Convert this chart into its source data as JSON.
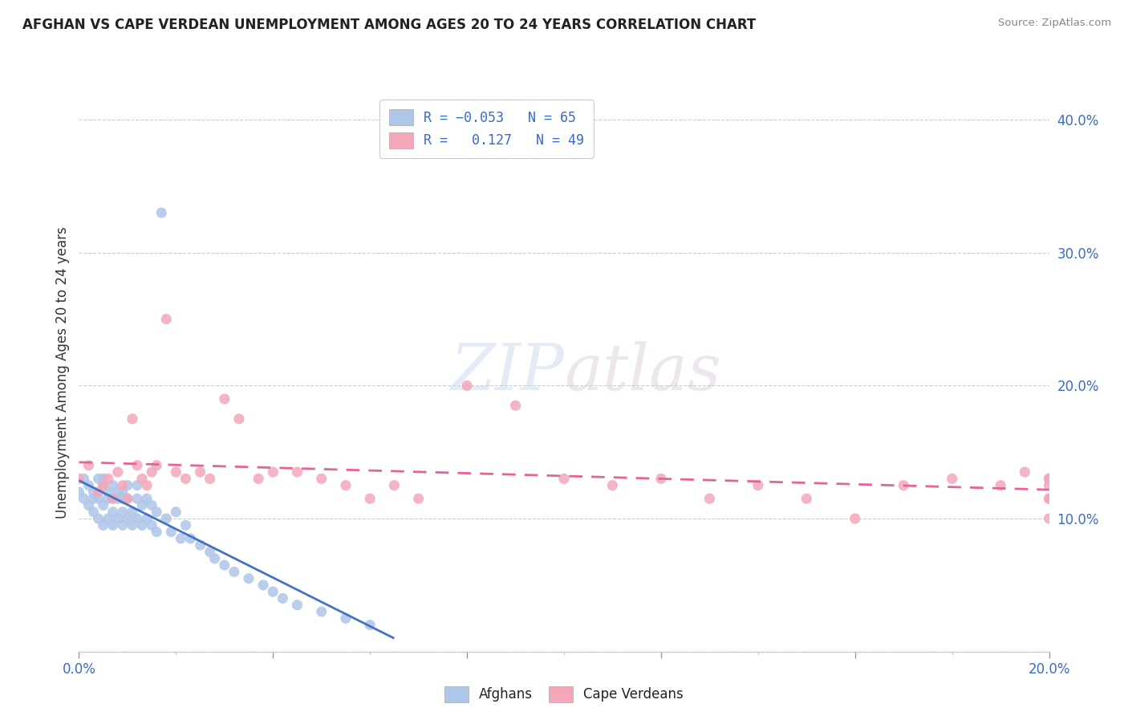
{
  "title": "AFGHAN VS CAPE VERDEAN UNEMPLOYMENT AMONG AGES 20 TO 24 YEARS CORRELATION CHART",
  "source": "Source: ZipAtlas.com",
  "ylabel": "Unemployment Among Ages 20 to 24 years",
  "xlim": [
    0.0,
    0.2
  ],
  "ylim": [
    0.0,
    0.42
  ],
  "afghan_R": -0.053,
  "afghan_N": 65,
  "capeverdean_R": 0.127,
  "capeverdean_N": 49,
  "afghan_color": "#aec6e8",
  "capeverdean_color": "#f4a7b9",
  "afghan_line_color": "#4472c4",
  "capeverdean_line_color": "#e8629a",
  "afghan_x": [
    0.0,
    0.001,
    0.001,
    0.002,
    0.002,
    0.003,
    0.003,
    0.003,
    0.004,
    0.004,
    0.004,
    0.005,
    0.005,
    0.005,
    0.005,
    0.006,
    0.006,
    0.006,
    0.007,
    0.007,
    0.007,
    0.007,
    0.008,
    0.008,
    0.008,
    0.009,
    0.009,
    0.009,
    0.009,
    0.01,
    0.01,
    0.01,
    0.011,
    0.011,
    0.012,
    0.012,
    0.012,
    0.013,
    0.013,
    0.014,
    0.014,
    0.015,
    0.015,
    0.016,
    0.016,
    0.017,
    0.018,
    0.019,
    0.02,
    0.021,
    0.022,
    0.023,
    0.025,
    0.027,
    0.028,
    0.03,
    0.032,
    0.035,
    0.038,
    0.04,
    0.042,
    0.045,
    0.05,
    0.055,
    0.06
  ],
  "afghan_y": [
    0.12,
    0.13,
    0.115,
    0.11,
    0.125,
    0.105,
    0.12,
    0.115,
    0.1,
    0.115,
    0.13,
    0.095,
    0.11,
    0.125,
    0.13,
    0.1,
    0.115,
    0.12,
    0.095,
    0.105,
    0.115,
    0.125,
    0.1,
    0.115,
    0.12,
    0.095,
    0.105,
    0.115,
    0.12,
    0.1,
    0.115,
    0.125,
    0.095,
    0.105,
    0.1,
    0.115,
    0.125,
    0.095,
    0.11,
    0.1,
    0.115,
    0.095,
    0.11,
    0.09,
    0.105,
    0.33,
    0.1,
    0.09,
    0.105,
    0.085,
    0.095,
    0.085,
    0.08,
    0.075,
    0.07,
    0.065,
    0.06,
    0.055,
    0.05,
    0.045,
    0.04,
    0.035,
    0.03,
    0.025,
    0.02
  ],
  "capeverdean_x": [
    0.0,
    0.002,
    0.004,
    0.005,
    0.006,
    0.007,
    0.008,
    0.009,
    0.01,
    0.011,
    0.012,
    0.013,
    0.014,
    0.015,
    0.016,
    0.018,
    0.02,
    0.022,
    0.025,
    0.027,
    0.03,
    0.033,
    0.037,
    0.04,
    0.045,
    0.05,
    0.055,
    0.06,
    0.065,
    0.07,
    0.08,
    0.09,
    0.1,
    0.11,
    0.12,
    0.13,
    0.14,
    0.15,
    0.16,
    0.17,
    0.18,
    0.19,
    0.195,
    0.2,
    0.2,
    0.2,
    0.2,
    0.2,
    0.2
  ],
  "capeverdean_y": [
    0.13,
    0.14,
    0.12,
    0.125,
    0.13,
    0.115,
    0.135,
    0.125,
    0.115,
    0.175,
    0.14,
    0.13,
    0.125,
    0.135,
    0.14,
    0.25,
    0.135,
    0.13,
    0.135,
    0.13,
    0.19,
    0.175,
    0.13,
    0.135,
    0.135,
    0.13,
    0.125,
    0.115,
    0.125,
    0.115,
    0.2,
    0.185,
    0.13,
    0.125,
    0.13,
    0.115,
    0.125,
    0.115,
    0.1,
    0.125,
    0.13,
    0.125,
    0.135,
    0.1,
    0.115,
    0.13,
    0.125,
    0.115,
    0.13
  ]
}
